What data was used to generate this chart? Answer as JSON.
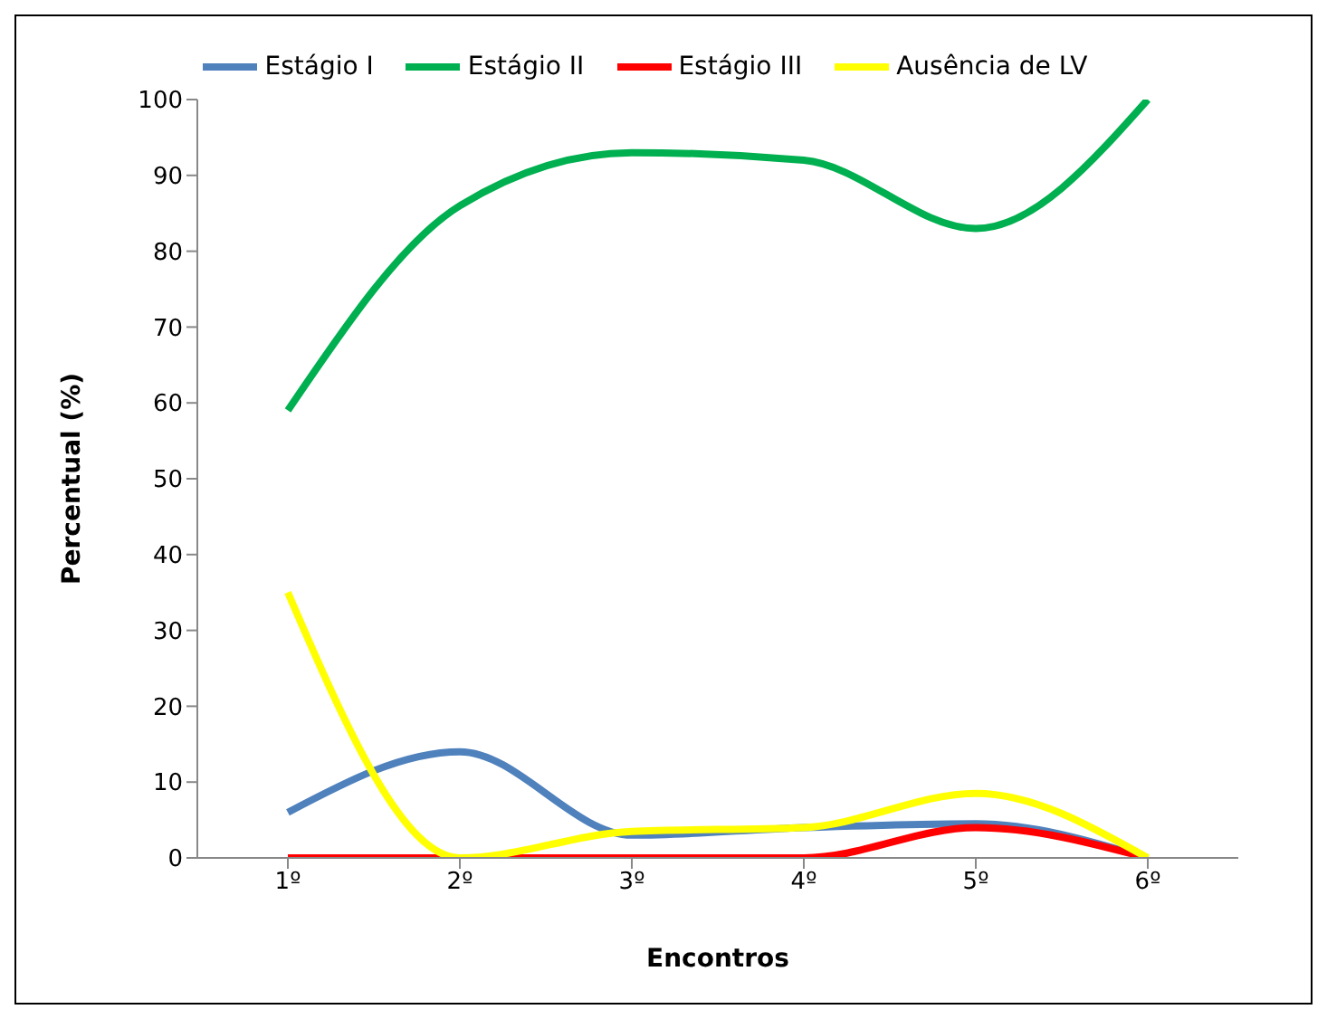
{
  "chart_data": {
    "type": "line",
    "xlabel": "Encontros",
    "ylabel": "Percentual (%)",
    "categories": [
      "1º",
      "2º",
      "3º",
      "4º",
      "5º",
      "6º"
    ],
    "series": [
      {
        "name": "Estágio I",
        "color": "#4f81bd",
        "values": [
          6,
          14,
          3,
          4,
          4.5,
          0
        ]
      },
      {
        "name": "Estágio II",
        "color": "#00b050",
        "values": [
          59,
          86,
          93,
          92,
          83,
          100
        ]
      },
      {
        "name": "Estágio III",
        "color": "#ff0000",
        "values": [
          0,
          0,
          0,
          0,
          4,
          0
        ]
      },
      {
        "name": "Ausência de LV",
        "color": "#ffff00",
        "values": [
          35,
          0,
          3.5,
          4,
          8.5,
          0
        ]
      }
    ],
    "ylim": [
      0,
      100
    ],
    "yticks": [
      0,
      10,
      20,
      30,
      40,
      50,
      60,
      70,
      80,
      90,
      100
    ],
    "grid": false,
    "legend": "top",
    "marker": "none",
    "line_style": "solid"
  }
}
